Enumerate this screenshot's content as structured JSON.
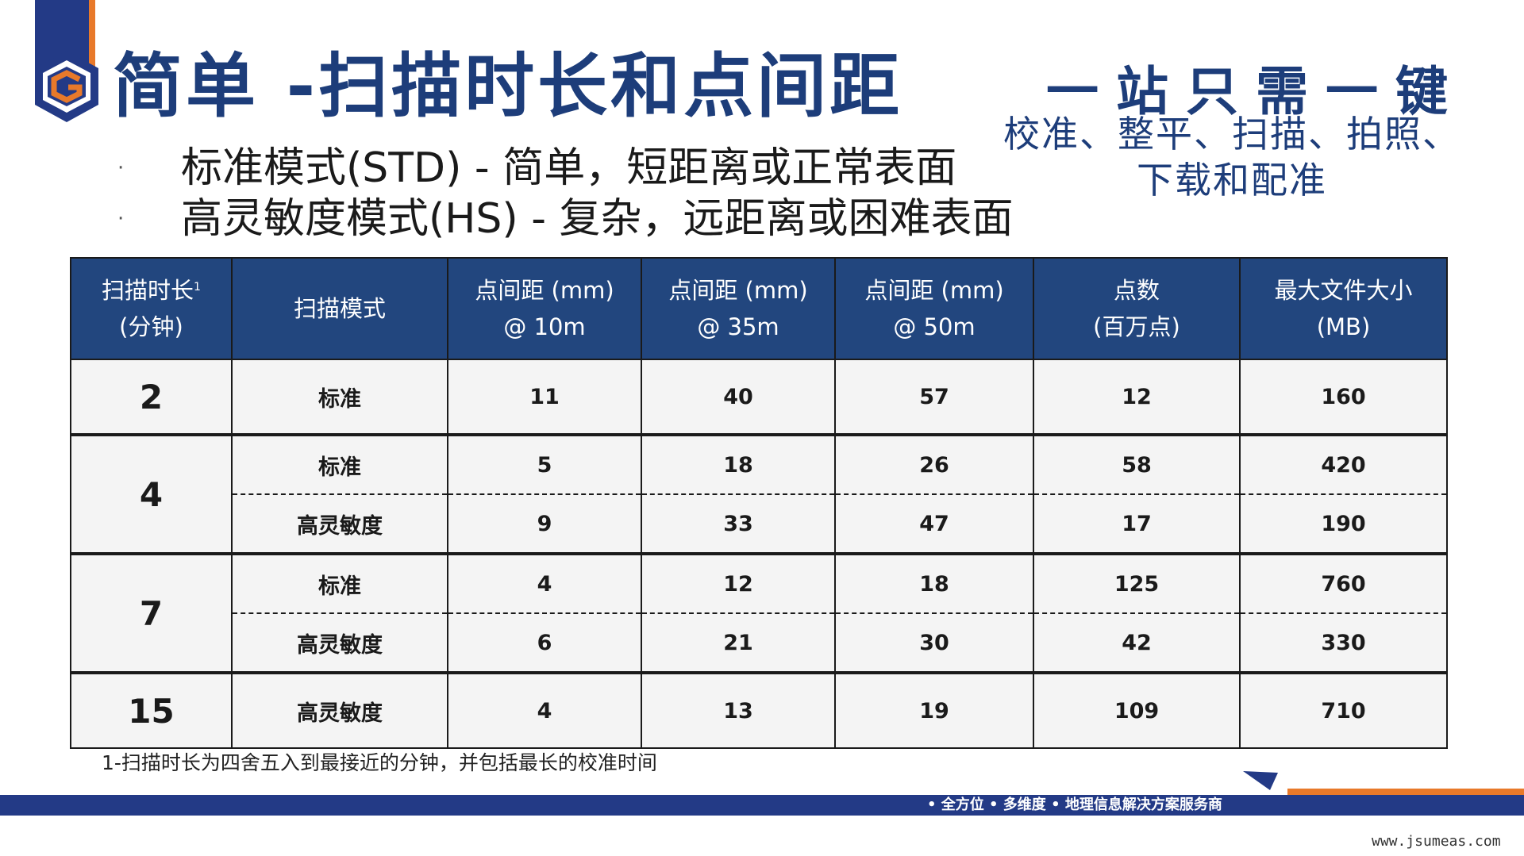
{
  "title": "简单 -扫描时长和点间距",
  "slogan": {
    "headline": "一站只需一键",
    "sub_line1": "校准、整平、扫描、拍照、",
    "sub_line2": "下载和配准"
  },
  "bullets": [
    {
      "marker": "·",
      "text": "标准模式(STD) - 简单，短距离或正常表面"
    },
    {
      "marker": "·",
      "text": "高灵敏度模式(HS) - 复杂，远距离或困难表面"
    }
  ],
  "table": {
    "headers": [
      {
        "line1": "扫描时长",
        "sup": "1",
        "line2": "(分钟)"
      },
      {
        "line1": "扫描模式",
        "line2": ""
      },
      {
        "line1": "点间距 (mm)",
        "line2": "@ 10m"
      },
      {
        "line1": "点间距 (mm)",
        "line2": "@ 35m"
      },
      {
        "line1": "点间距 (mm)",
        "line2": "@ 50m"
      },
      {
        "line1": "点数",
        "line2": "(百万点)"
      },
      {
        "line1": "最大文件大小",
        "line2": "(MB)"
      }
    ],
    "groups": [
      {
        "duration": "2",
        "rows": [
          {
            "mode": "标准",
            "p10": "11",
            "p35": "40",
            "p50": "57",
            "points": "12",
            "size": "160"
          }
        ]
      },
      {
        "duration": "4",
        "rows": [
          {
            "mode": "标准",
            "p10": "5",
            "p35": "18",
            "p50": "26",
            "points": "58",
            "size": "420"
          },
          {
            "mode": "高灵敏度",
            "p10": "9",
            "p35": "33",
            "p50": "47",
            "points": "17",
            "size": "190"
          }
        ]
      },
      {
        "duration": "7",
        "rows": [
          {
            "mode": "标准",
            "p10": "4",
            "p35": "12",
            "p50": "18",
            "points": "125",
            "size": "760"
          },
          {
            "mode": "高灵敏度",
            "p10": "6",
            "p35": "21",
            "p50": "30",
            "points": "42",
            "size": "330"
          }
        ]
      },
      {
        "duration": "15",
        "rows": [
          {
            "mode": "高灵敏度",
            "p10": "4",
            "p35": "13",
            "p50": "19",
            "points": "109",
            "size": "710"
          }
        ]
      }
    ]
  },
  "footnote": "1-扫描时长为四舍五入到最接近的分钟，并包括最长的校准时间",
  "footer": {
    "tagline": "• 全方位 • 多维度 • 地理信息解决方案服务商",
    "website": "www.jsumeas.com"
  },
  "colors": {
    "brand_navy": "#233a86",
    "header_blue": "#22467e",
    "accent_orange": "#e8792a",
    "title_blue": "#1d3d7a"
  }
}
